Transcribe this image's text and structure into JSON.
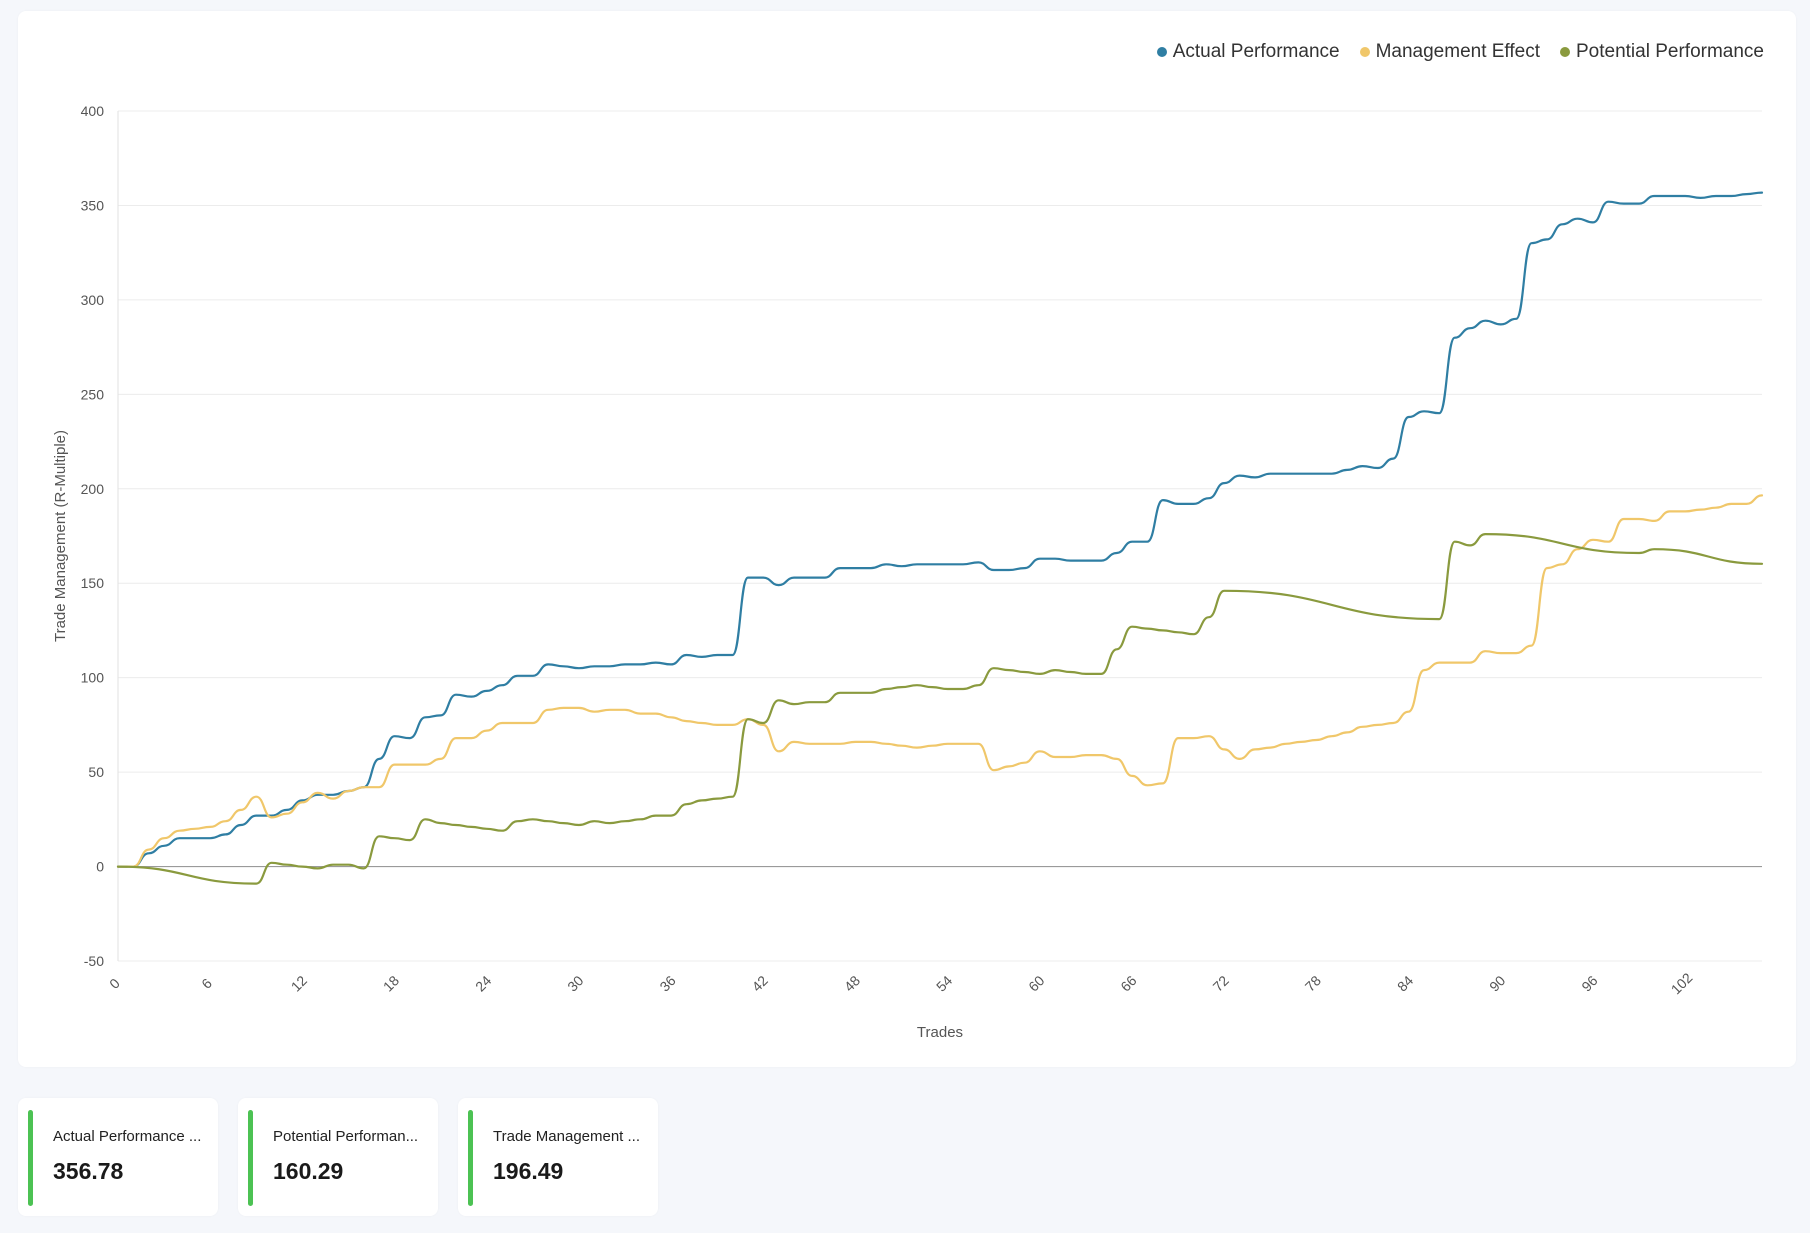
{
  "chart_data": {
    "type": "line",
    "title": "",
    "xlabel": "Trades",
    "ylabel": "Trade Management (R-Multiple)",
    "xlim": [
      0,
      107
    ],
    "ylim": [
      -50,
      400
    ],
    "y_ticks": [
      -50,
      0,
      50,
      100,
      150,
      200,
      250,
      300,
      350,
      400
    ],
    "x_ticks": [
      0,
      6,
      12,
      18,
      24,
      30,
      36,
      42,
      48,
      54,
      60,
      66,
      72,
      78,
      84,
      90,
      96,
      102
    ],
    "grid": true,
    "legend_position": "top-right",
    "series": [
      {
        "name": "Actual Performance",
        "color": "#2f7ea3",
        "points": [
          [
            0,
            0
          ],
          [
            1,
            0
          ],
          [
            2,
            7
          ],
          [
            3,
            11
          ],
          [
            4,
            15
          ],
          [
            5,
            15
          ],
          [
            6,
            15
          ],
          [
            7,
            17
          ],
          [
            8,
            22
          ],
          [
            9,
            27
          ],
          [
            10,
            27
          ],
          [
            11,
            30
          ],
          [
            12,
            35
          ],
          [
            13,
            38
          ],
          [
            14,
            38
          ],
          [
            15,
            40
          ],
          [
            16,
            42
          ],
          [
            17,
            57
          ],
          [
            18,
            69
          ],
          [
            19,
            68
          ],
          [
            20,
            79
          ],
          [
            21,
            80
          ],
          [
            22,
            91
          ],
          [
            23,
            90
          ],
          [
            24,
            93
          ],
          [
            25,
            96
          ],
          [
            26,
            101
          ],
          [
            27,
            101
          ],
          [
            28,
            107
          ],
          [
            29,
            106
          ],
          [
            30,
            105
          ],
          [
            31,
            106
          ],
          [
            32,
            106
          ],
          [
            33,
            107
          ],
          [
            34,
            107
          ],
          [
            35,
            108
          ],
          [
            36,
            107
          ],
          [
            37,
            112
          ],
          [
            38,
            111
          ],
          [
            39,
            112
          ],
          [
            40,
            112
          ],
          [
            41,
            153
          ],
          [
            42,
            153
          ],
          [
            43,
            149
          ],
          [
            44,
            153
          ],
          [
            45,
            153
          ],
          [
            46,
            153
          ],
          [
            47,
            158
          ],
          [
            48,
            158
          ],
          [
            49,
            158
          ],
          [
            50,
            160
          ],
          [
            51,
            159
          ],
          [
            52,
            160
          ],
          [
            53,
            160
          ],
          [
            54,
            160
          ],
          [
            55,
            160
          ],
          [
            56,
            161
          ],
          [
            57,
            157
          ],
          [
            58,
            157
          ],
          [
            59,
            158
          ],
          [
            60,
            163
          ],
          [
            61,
            163
          ],
          [
            62,
            162
          ],
          [
            63,
            162
          ],
          [
            64,
            162
          ],
          [
            65,
            166
          ],
          [
            66,
            172
          ],
          [
            67,
            172
          ],
          [
            68,
            194
          ],
          [
            69,
            192
          ],
          [
            70,
            192
          ],
          [
            71,
            195
          ],
          [
            72,
            203
          ],
          [
            73,
            207
          ],
          [
            74,
            206
          ],
          [
            75,
            208
          ],
          [
            76,
            208
          ],
          [
            77,
            208
          ],
          [
            78,
            208
          ],
          [
            79,
            208
          ],
          [
            80,
            210
          ],
          [
            81,
            212
          ],
          [
            82,
            211
          ],
          [
            83,
            216
          ],
          [
            84,
            238
          ],
          [
            85,
            241
          ],
          [
            86,
            240
          ],
          [
            87,
            280
          ],
          [
            88,
            285
          ],
          [
            89,
            289
          ],
          [
            90,
            287
          ],
          [
            91,
            290
          ],
          [
            92,
            330
          ],
          [
            93,
            332
          ],
          [
            94,
            340
          ],
          [
            95,
            343
          ],
          [
            96,
            341
          ],
          [
            97,
            352
          ],
          [
            98,
            351
          ],
          [
            99,
            351
          ],
          [
            100,
            355
          ],
          [
            101,
            355
          ],
          [
            102,
            355
          ],
          [
            103,
            354
          ],
          [
            104,
            355
          ],
          [
            105,
            355
          ],
          [
            106,
            356
          ],
          [
            107,
            356.78
          ]
        ]
      },
      {
        "name": "Management Effect",
        "color": "#f0c76a",
        "points": [
          [
            0,
            0
          ],
          [
            1,
            0
          ],
          [
            2,
            9
          ],
          [
            3,
            15
          ],
          [
            4,
            19
          ],
          [
            5,
            20
          ],
          [
            6,
            21
          ],
          [
            7,
            24
          ],
          [
            8,
            30
          ],
          [
            9,
            37
          ],
          [
            10,
            26
          ],
          [
            11,
            28
          ],
          [
            12,
            34
          ],
          [
            13,
            39
          ],
          [
            14,
            36
          ],
          [
            15,
            40
          ],
          [
            16,
            42
          ],
          [
            17,
            42
          ],
          [
            18,
            54
          ],
          [
            19,
            54
          ],
          [
            20,
            54
          ],
          [
            21,
            57
          ],
          [
            22,
            68
          ],
          [
            23,
            68
          ],
          [
            24,
            72
          ],
          [
            25,
            76
          ],
          [
            26,
            76
          ],
          [
            27,
            76
          ],
          [
            28,
            83
          ],
          [
            29,
            84
          ],
          [
            30,
            84
          ],
          [
            31,
            82
          ],
          [
            32,
            83
          ],
          [
            33,
            83
          ],
          [
            34,
            81
          ],
          [
            35,
            81
          ],
          [
            36,
            79
          ],
          [
            37,
            77
          ],
          [
            38,
            76
          ],
          [
            39,
            75
          ],
          [
            40,
            75
          ],
          [
            41,
            78
          ],
          [
            42,
            75
          ],
          [
            43,
            61
          ],
          [
            44,
            66
          ],
          [
            45,
            65
          ],
          [
            46,
            65
          ],
          [
            47,
            65
          ],
          [
            48,
            66
          ],
          [
            49,
            66
          ],
          [
            50,
            65
          ],
          [
            51,
            64
          ],
          [
            52,
            63
          ],
          [
            53,
            64
          ],
          [
            54,
            65
          ],
          [
            55,
            65
          ],
          [
            56,
            65
          ],
          [
            57,
            51
          ],
          [
            58,
            53
          ],
          [
            59,
            55
          ],
          [
            60,
            61
          ],
          [
            61,
            58
          ],
          [
            62,
            58
          ],
          [
            63,
            59
          ],
          [
            64,
            59
          ],
          [
            65,
            57
          ],
          [
            66,
            48
          ],
          [
            67,
            43
          ],
          [
            68,
            44
          ],
          [
            69,
            68
          ],
          [
            70,
            68
          ],
          [
            71,
            69
          ],
          [
            72,
            62
          ],
          [
            73,
            57
          ],
          [
            74,
            62
          ],
          [
            75,
            63
          ],
          [
            76,
            65
          ],
          [
            77,
            66
          ],
          [
            78,
            67
          ],
          [
            79,
            69
          ],
          [
            80,
            71
          ],
          [
            81,
            74
          ],
          [
            82,
            75
          ],
          [
            83,
            76
          ],
          [
            84,
            82
          ],
          [
            85,
            104
          ],
          [
            86,
            108
          ],
          [
            87,
            108
          ],
          [
            88,
            108
          ],
          [
            89,
            114
          ],
          [
            90,
            113
          ],
          [
            91,
            113
          ],
          [
            92,
            117
          ],
          [
            93,
            158
          ],
          [
            94,
            160
          ],
          [
            95,
            168
          ],
          [
            96,
            173
          ],
          [
            97,
            172
          ],
          [
            98,
            184
          ],
          [
            99,
            184
          ],
          [
            100,
            183
          ],
          [
            101,
            188
          ],
          [
            102,
            188
          ],
          [
            103,
            189
          ],
          [
            104,
            190
          ],
          [
            105,
            192
          ],
          [
            106,
            192
          ],
          [
            107,
            196.49
          ]
        ]
      },
      {
        "name": "Potential Performance",
        "color": "#8a9a3e",
        "points": [
          [
            0,
            0
          ],
          [
            9,
            -9
          ],
          [
            10,
            2
          ],
          [
            11,
            1
          ],
          [
            12,
            0
          ],
          [
            13,
            -1
          ],
          [
            14,
            1
          ],
          [
            15,
            1
          ],
          [
            16,
            -1
          ],
          [
            17,
            16
          ],
          [
            18,
            15
          ],
          [
            19,
            14
          ],
          [
            20,
            25
          ],
          [
            21,
            23
          ],
          [
            22,
            22
          ],
          [
            23,
            21
          ],
          [
            24,
            20
          ],
          [
            25,
            19
          ],
          [
            26,
            24
          ],
          [
            27,
            25
          ],
          [
            28,
            24
          ],
          [
            29,
            23
          ],
          [
            30,
            22
          ],
          [
            31,
            24
          ],
          [
            32,
            23
          ],
          [
            33,
            24
          ],
          [
            34,
            25
          ],
          [
            35,
            27
          ],
          [
            36,
            27
          ],
          [
            37,
            33
          ],
          [
            38,
            35
          ],
          [
            39,
            36
          ],
          [
            40,
            37
          ],
          [
            41,
            78
          ],
          [
            42,
            76
          ],
          [
            43,
            88
          ],
          [
            44,
            86
          ],
          [
            45,
            87
          ],
          [
            46,
            87
          ],
          [
            47,
            92
          ],
          [
            48,
            92
          ],
          [
            49,
            92
          ],
          [
            50,
            94
          ],
          [
            51,
            95
          ],
          [
            52,
            96
          ],
          [
            53,
            95
          ],
          [
            54,
            94
          ],
          [
            55,
            94
          ],
          [
            56,
            96
          ],
          [
            57,
            105
          ],
          [
            58,
            104
          ],
          [
            59,
            103
          ],
          [
            60,
            102
          ],
          [
            61,
            104
          ],
          [
            62,
            103
          ],
          [
            63,
            102
          ],
          [
            64,
            102
          ],
          [
            65,
            115
          ],
          [
            66,
            127
          ],
          [
            67,
            126
          ],
          [
            68,
            125
          ],
          [
            69,
            124
          ],
          [
            70,
            123
          ],
          [
            71,
            132
          ],
          [
            72,
            146
          ],
          [
            86,
            131
          ],
          [
            87,
            172
          ],
          [
            88,
            170
          ],
          [
            89,
            176
          ],
          [
            99,
            166
          ],
          [
            100,
            168
          ],
          [
            107,
            160.29
          ]
        ]
      }
    ]
  },
  "summary_cards": [
    {
      "label": "Actual Performance ...",
      "value": "356.78"
    },
    {
      "label": "Potential Performan...",
      "value": "160.29"
    },
    {
      "label": "Trade Management ...",
      "value": "196.49"
    }
  ]
}
